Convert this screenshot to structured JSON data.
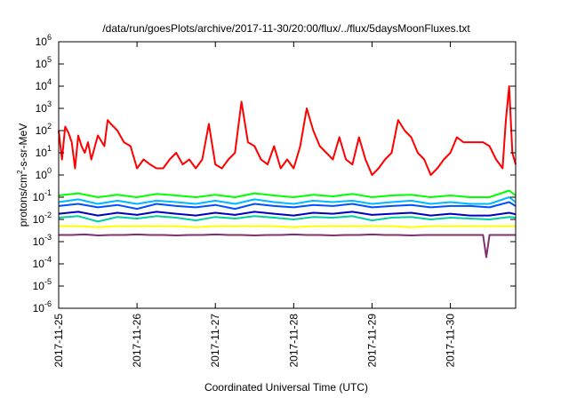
{
  "chart_data": {
    "type": "line",
    "title": "/data/run/goesPlots/archive/2017-11-30/20:00/flux/../flux/5daysMoonFluxes.txt",
    "xlabel": "Coordinated Universal Time (UTC)",
    "ylabel": "protons/cm²-s-sr-MeV",
    "ylabel_parts": {
      "pre": "protons/cm",
      "sup": "2",
      "post": "-s-sr-MeV"
    },
    "yscale": "log",
    "ylim": [
      1e-06,
      1000000.0
    ],
    "xlim": [
      "2017-11-25T00:00",
      "2017-11-30T20:00"
    ],
    "x_ticks": [
      "2017-11-25",
      "2017-11-26",
      "2017-11-27",
      "2017-11-28",
      "2017-11-29",
      "2017-11-30"
    ],
    "y_ticks": [
      {
        "base": "10",
        "exp": "-6"
      },
      {
        "base": "10",
        "exp": "-5"
      },
      {
        "base": "10",
        "exp": "-4"
      },
      {
        "base": "10",
        "exp": "-3"
      },
      {
        "base": "10",
        "exp": "-2"
      },
      {
        "base": "10",
        "exp": "-1"
      },
      {
        "base": "10",
        "exp": "0"
      },
      {
        "base": "10",
        "exp": "1"
      },
      {
        "base": "10",
        "exp": "2"
      },
      {
        "base": "10",
        "exp": "3"
      },
      {
        "base": "10",
        "exp": "4"
      },
      {
        "base": "10",
        "exp": "5"
      },
      {
        "base": "10",
        "exp": "6"
      }
    ],
    "grid": false,
    "legend": "none",
    "series": [
      {
        "color": "#ff0000",
        "x": [
          "2017-11-25T00:00",
          "2017-11-25T01:00",
          "2017-11-25T02:00",
          "2017-11-25T03:00",
          "2017-11-25T04:00",
          "2017-11-25T05:00",
          "2017-11-25T06:00",
          "2017-11-25T07:00",
          "2017-11-25T08:00",
          "2017-11-25T09:00",
          "2017-11-25T10:00",
          "2017-11-25T12:00",
          "2017-11-25T14:00",
          "2017-11-25T15:00",
          "2017-11-25T16:00",
          "2017-11-25T18:00",
          "2017-11-25T20:00",
          "2017-11-25T22:00",
          "2017-11-26T00:00",
          "2017-11-26T02:00",
          "2017-11-26T04:00",
          "2017-11-26T06:00",
          "2017-11-26T08:00",
          "2017-11-26T10:00",
          "2017-11-26T12:00",
          "2017-11-26T14:00",
          "2017-11-26T16:00",
          "2017-11-26T18:00",
          "2017-11-26T20:00",
          "2017-11-26T22:00",
          "2017-11-27T00:00",
          "2017-11-27T02:00",
          "2017-11-27T04:00",
          "2017-11-27T06:00",
          "2017-11-27T08:00",
          "2017-11-27T10:00",
          "2017-11-27T12:00",
          "2017-11-27T14:00",
          "2017-11-27T16:00",
          "2017-11-27T18:00",
          "2017-11-27T20:00",
          "2017-11-27T22:00",
          "2017-11-28T00:00",
          "2017-11-28T02:00",
          "2017-11-28T04:00",
          "2017-11-28T06:00",
          "2017-11-28T08:00",
          "2017-11-28T10:00",
          "2017-11-28T12:00",
          "2017-11-28T14:00",
          "2017-11-28T16:00",
          "2017-11-28T18:00",
          "2017-11-28T20:00",
          "2017-11-28T22:00",
          "2017-11-29T00:00",
          "2017-11-29T02:00",
          "2017-11-29T04:00",
          "2017-11-29T06:00",
          "2017-11-29T08:00",
          "2017-11-29T10:00",
          "2017-11-29T12:00",
          "2017-11-29T14:00",
          "2017-11-29T16:00",
          "2017-11-29T18:00",
          "2017-11-29T20:00",
          "2017-11-29T22:00",
          "2017-11-30T00:00",
          "2017-11-30T02:00",
          "2017-11-30T04:00",
          "2017-11-30T06:00",
          "2017-11-30T08:00",
          "2017-11-30T10:00",
          "2017-11-30T12:00",
          "2017-11-30T14:00",
          "2017-11-30T16:00",
          "2017-11-30T17:00",
          "2017-11-30T18:00",
          "2017-11-30T19:00",
          "2017-11-30T20:00"
        ],
        "values": [
          100,
          5,
          150,
          80,
          30,
          2,
          60,
          20,
          10,
          30,
          5,
          60,
          20,
          300,
          200,
          100,
          30,
          20,
          2,
          5,
          3,
          2,
          2,
          5,
          10,
          3,
          5,
          2,
          5,
          200,
          3,
          2,
          5,
          10,
          2000,
          30,
          20,
          5,
          3,
          20,
          2,
          5,
          2,
          20,
          1000,
          100,
          20,
          10,
          5,
          50,
          5,
          3,
          50,
          5,
          1,
          2,
          5,
          10,
          300,
          100,
          50,
          10,
          5,
          1,
          2,
          5,
          10,
          50,
          30,
          30,
          30,
          30,
          20,
          5,
          2,
          300,
          10000,
          10,
          3
        ]
      },
      {
        "color": "#00ff00",
        "x": [
          "2017-11-25T00:00",
          "2017-11-25T06:00",
          "2017-11-25T12:00",
          "2017-11-25T18:00",
          "2017-11-26T00:00",
          "2017-11-26T06:00",
          "2017-11-26T12:00",
          "2017-11-26T18:00",
          "2017-11-27T00:00",
          "2017-11-27T06:00",
          "2017-11-27T12:00",
          "2017-11-27T18:00",
          "2017-11-28T00:00",
          "2017-11-28T06:00",
          "2017-11-28T12:00",
          "2017-11-28T18:00",
          "2017-11-29T00:00",
          "2017-11-29T06:00",
          "2017-11-29T12:00",
          "2017-11-29T18:00",
          "2017-11-30T00:00",
          "2017-11-30T06:00",
          "2017-11-30T12:00",
          "2017-11-30T18:00",
          "2017-11-30T20:00"
        ],
        "values": [
          0.12,
          0.15,
          0.1,
          0.13,
          0.1,
          0.14,
          0.12,
          0.1,
          0.13,
          0.1,
          0.15,
          0.12,
          0.1,
          0.13,
          0.11,
          0.14,
          0.1,
          0.12,
          0.13,
          0.1,
          0.12,
          0.1,
          0.1,
          0.2,
          0.12
        ]
      },
      {
        "color": "#00b8ff",
        "x": [
          "2017-11-25T00:00",
          "2017-11-25T06:00",
          "2017-11-25T12:00",
          "2017-11-25T18:00",
          "2017-11-26T00:00",
          "2017-11-26T06:00",
          "2017-11-26T12:00",
          "2017-11-26T18:00",
          "2017-11-27T00:00",
          "2017-11-27T06:00",
          "2017-11-27T12:00",
          "2017-11-27T18:00",
          "2017-11-28T00:00",
          "2017-11-28T06:00",
          "2017-11-28T12:00",
          "2017-11-28T18:00",
          "2017-11-29T00:00",
          "2017-11-29T06:00",
          "2017-11-29T12:00",
          "2017-11-29T18:00",
          "2017-11-30T00:00",
          "2017-11-30T06:00",
          "2017-11-30T12:00",
          "2017-11-30T18:00",
          "2017-11-30T20:00"
        ],
        "values": [
          0.06,
          0.08,
          0.05,
          0.07,
          0.05,
          0.07,
          0.06,
          0.05,
          0.07,
          0.05,
          0.08,
          0.06,
          0.05,
          0.07,
          0.06,
          0.07,
          0.05,
          0.06,
          0.07,
          0.05,
          0.06,
          0.05,
          0.05,
          0.1,
          0.06
        ]
      },
      {
        "color": "#0050ff",
        "x": [
          "2017-11-25T00:00",
          "2017-11-25T06:00",
          "2017-11-25T12:00",
          "2017-11-25T18:00",
          "2017-11-26T00:00",
          "2017-11-26T06:00",
          "2017-11-26T12:00",
          "2017-11-26T18:00",
          "2017-11-27T00:00",
          "2017-11-27T06:00",
          "2017-11-27T12:00",
          "2017-11-27T18:00",
          "2017-11-28T00:00",
          "2017-11-28T06:00",
          "2017-11-28T12:00",
          "2017-11-28T18:00",
          "2017-11-29T00:00",
          "2017-11-29T06:00",
          "2017-11-29T12:00",
          "2017-11-29T18:00",
          "2017-11-30T00:00",
          "2017-11-30T06:00",
          "2017-11-30T12:00",
          "2017-11-30T18:00",
          "2017-11-30T20:00"
        ],
        "values": [
          0.04,
          0.05,
          0.035,
          0.045,
          0.03,
          0.05,
          0.04,
          0.035,
          0.045,
          0.03,
          0.05,
          0.04,
          0.035,
          0.045,
          0.04,
          0.05,
          0.035,
          0.04,
          0.045,
          0.035,
          0.04,
          0.04,
          0.035,
          0.06,
          0.04
        ]
      },
      {
        "color": "#0000c0",
        "x": [
          "2017-11-25T00:00",
          "2017-11-25T06:00",
          "2017-11-25T12:00",
          "2017-11-25T18:00",
          "2017-11-26T00:00",
          "2017-11-26T06:00",
          "2017-11-26T12:00",
          "2017-11-26T18:00",
          "2017-11-27T00:00",
          "2017-11-27T06:00",
          "2017-11-27T12:00",
          "2017-11-27T18:00",
          "2017-11-28T00:00",
          "2017-11-28T06:00",
          "2017-11-28T12:00",
          "2017-11-28T18:00",
          "2017-11-29T00:00",
          "2017-11-29T06:00",
          "2017-11-29T12:00",
          "2017-11-29T18:00",
          "2017-11-30T00:00",
          "2017-11-30T06:00",
          "2017-11-30T12:00",
          "2017-11-30T18:00",
          "2017-11-30T20:00"
        ],
        "values": [
          0.018,
          0.022,
          0.015,
          0.02,
          0.016,
          0.022,
          0.018,
          0.015,
          0.02,
          0.016,
          0.022,
          0.018,
          0.015,
          0.02,
          0.018,
          0.022,
          0.016,
          0.018,
          0.02,
          0.015,
          0.018,
          0.015,
          0.015,
          0.02,
          0.017
        ]
      },
      {
        "color": "#00d0a0",
        "x": [
          "2017-11-25T00:00",
          "2017-11-25T06:00",
          "2017-11-25T12:00",
          "2017-11-25T18:00",
          "2017-11-26T00:00",
          "2017-11-26T06:00",
          "2017-11-26T12:00",
          "2017-11-26T18:00",
          "2017-11-27T00:00",
          "2017-11-27T06:00",
          "2017-11-27T12:00",
          "2017-11-27T18:00",
          "2017-11-28T00:00",
          "2017-11-28T06:00",
          "2017-11-28T12:00",
          "2017-11-28T18:00",
          "2017-11-29T00:00",
          "2017-11-29T06:00",
          "2017-11-29T12:00",
          "2017-11-29T18:00",
          "2017-11-30T00:00",
          "2017-11-30T06:00",
          "2017-11-30T12:00",
          "2017-11-30T18:00",
          "2017-11-30T20:00"
        ],
        "values": [
          0.012,
          0.014,
          0.008,
          0.013,
          0.011,
          0.014,
          0.012,
          0.009,
          0.013,
          0.011,
          0.014,
          0.012,
          0.01,
          0.013,
          0.012,
          0.014,
          0.009,
          0.012,
          0.013,
          0.01,
          0.012,
          0.011,
          0.01,
          0.013,
          0.012
        ]
      },
      {
        "color": "#ffff00",
        "x": [
          "2017-11-25T00:00",
          "2017-11-25T06:00",
          "2017-11-25T12:00",
          "2017-11-25T18:00",
          "2017-11-26T00:00",
          "2017-11-26T06:00",
          "2017-11-26T12:00",
          "2017-11-26T18:00",
          "2017-11-27T00:00",
          "2017-11-27T06:00",
          "2017-11-27T12:00",
          "2017-11-27T18:00",
          "2017-11-28T00:00",
          "2017-11-28T06:00",
          "2017-11-28T12:00",
          "2017-11-28T18:00",
          "2017-11-29T00:00",
          "2017-11-29T06:00",
          "2017-11-29T12:00",
          "2017-11-29T18:00",
          "2017-11-30T00:00",
          "2017-11-30T06:00",
          "2017-11-30T12:00",
          "2017-11-30T18:00",
          "2017-11-30T20:00"
        ],
        "values": [
          0.005,
          0.005,
          0.0045,
          0.005,
          0.005,
          0.005,
          0.005,
          0.0045,
          0.005,
          0.005,
          0.005,
          0.005,
          0.0045,
          0.005,
          0.005,
          0.005,
          0.005,
          0.005,
          0.0045,
          0.005,
          0.005,
          0.005,
          0.005,
          0.005,
          0.005
        ]
      },
      {
        "color": "#803070",
        "x": [
          "2017-11-25T00:00",
          "2017-11-25T04:00",
          "2017-11-25T08:00",
          "2017-11-25T12:00",
          "2017-11-25T16:00",
          "2017-11-25T20:00",
          "2017-11-26T00:00",
          "2017-11-26T04:00",
          "2017-11-26T08:00",
          "2017-11-26T12:00",
          "2017-11-26T16:00",
          "2017-11-26T20:00",
          "2017-11-27T00:00",
          "2017-11-27T04:00",
          "2017-11-27T08:00",
          "2017-11-27T12:00",
          "2017-11-27T16:00",
          "2017-11-27T20:00",
          "2017-11-28T00:00",
          "2017-11-28T04:00",
          "2017-11-28T08:00",
          "2017-11-28T12:00",
          "2017-11-28T16:00",
          "2017-11-28T20:00",
          "2017-11-29T00:00",
          "2017-11-29T04:00",
          "2017-11-29T08:00",
          "2017-11-29T12:00",
          "2017-11-29T16:00",
          "2017-11-29T20:00",
          "2017-11-30T00:00",
          "2017-11-30T04:00",
          "2017-11-30T08:00",
          "2017-11-30T10:00",
          "2017-11-30T11:00",
          "2017-11-30T12:00",
          "2017-11-30T16:00",
          "2017-11-30T20:00"
        ],
        "values": [
          0.002,
          0.002,
          0.0021,
          0.0019,
          0.002,
          0.002,
          0.0021,
          0.002,
          0.002,
          0.0019,
          0.002,
          0.002,
          0.0021,
          0.002,
          0.002,
          0.0019,
          0.002,
          0.002,
          0.0021,
          0.002,
          0.002,
          0.0019,
          0.002,
          0.002,
          0.0021,
          0.002,
          0.002,
          0.0019,
          0.002,
          0.002,
          0.002,
          0.002,
          0.002,
          0.002,
          0.0002,
          0.002,
          0.002,
          0.002
        ]
      }
    ]
  }
}
